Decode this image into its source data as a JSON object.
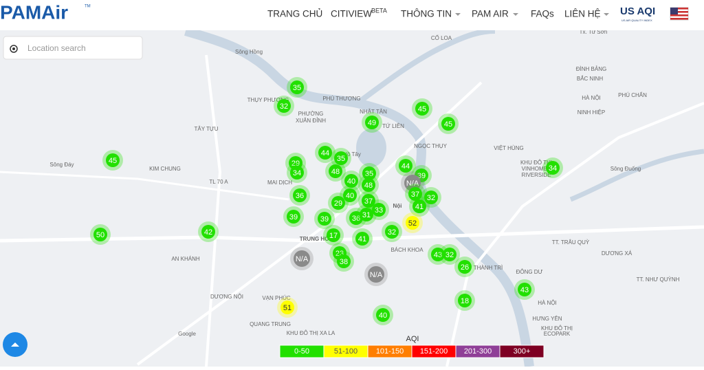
{
  "header": {
    "logo": "PAMAir",
    "trademark": "TM",
    "nav": [
      "TRANG CHỦ",
      "CITIVIEW",
      "THÔNG TIN",
      "PAM AIR",
      "FAQs",
      "LIÊN HỆ"
    ],
    "beta": "BETA",
    "aqi_badge": "US AQI",
    "aqi_badge_sub": "US AIR QUALITY INDEX"
  },
  "search": {
    "placeholder": "Location search"
  },
  "map": {
    "labels": [
      "Tx. Từ Sơn",
      "CỔ LOA",
      "Sông Hồng",
      "ĐÌNH BẢNG",
      "BẮC NINH",
      "PHÚ CHẨN",
      "HÀ NỘI",
      "NINH HIỆP",
      "THỤY PHƯƠNG",
      "PHÚ THƯỢNG",
      "NHẬT TÂN",
      "PHƯỜNG",
      "XUÂN ĐỈNH",
      "TÂY TỰU",
      "TỨ LIÊN",
      "NGỌC THỤY",
      "VIỆT HÙNG",
      "KIM CHUNG",
      "MAI DỊCH",
      "KHU ĐÔ THỊ",
      "VINHOMES",
      "RIVERSIDE",
      "Nội",
      "TRUNG HÒA",
      "BÁCH KHOA",
      "TT. TRÂU QUỲ",
      "DƯƠNG XÁ",
      "AN KHÁNH",
      "ĐÔNG DƯ",
      "TT. NHƯ QUỲNH",
      "DƯƠNG NỘI",
      "VẠN PHÚC",
      "QUANG TRUNG",
      "KHU ĐÔ THỊ XA LA",
      "HÀ NỘI",
      "HƯNG YÊN",
      "KHU ĐÔ THỊ",
      "ECOPARK",
      "Sông Đáy",
      "Sông Đuống",
      "Hồ Tây",
      "TL 70 A",
      "THÀNH TRÌ",
      "Google"
    ],
    "markers": [
      35,
      32,
      45,
      49,
      45,
      45,
      44,
      35,
      29,
      34,
      48,
      44,
      35,
      39,
      34,
      40,
      "N/A",
      48,
      36,
      37,
      40,
      32,
      29,
      37,
      41,
      33,
      39,
      39,
      36,
      31,
      52,
      42,
      50,
      32,
      17,
      41,
      "N/A",
      23,
      38,
      43,
      32,
      26,
      "N/A",
      43,
      18,
      51,
      40
    ]
  },
  "legend": {
    "title": "AQI",
    "items": [
      {
        "label": "0-50",
        "color": "#22e000"
      },
      {
        "label": "51-100",
        "color": "#ffff00"
      },
      {
        "label": "101-150",
        "color": "#ff7e00"
      },
      {
        "label": "151-200",
        "color": "#ff0000"
      },
      {
        "label": "201-300",
        "color": "#8f3f97"
      },
      {
        "label": "300+",
        "color": "#7e0023"
      }
    ]
  }
}
